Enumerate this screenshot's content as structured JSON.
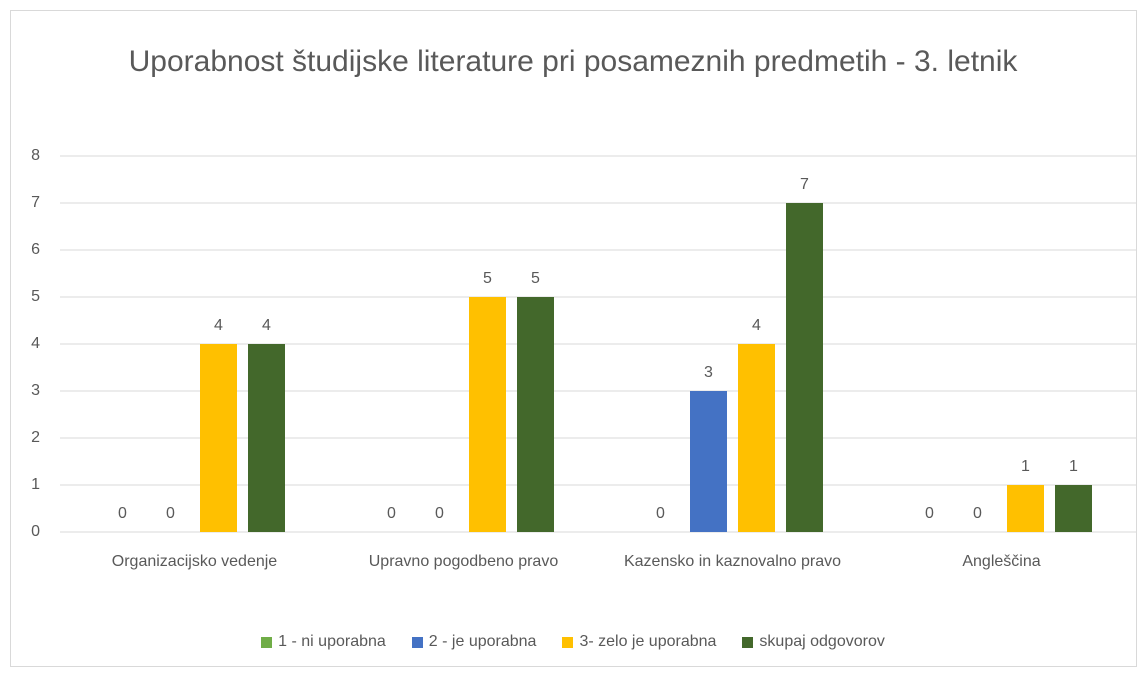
{
  "chart_data": {
    "type": "bar",
    "title": "Uporabnost študijske literature pri posameznih predmetih - 3. letnik",
    "categories": [
      "Organizacijsko vedenje",
      "Upravno pogodbeno pravo",
      "Kazensko in kaznovalno pravo",
      "Angleščina"
    ],
    "series": [
      {
        "name": "1 - ni uporabna",
        "color": "#70ad47",
        "values": [
          0,
          0,
          0,
          0
        ]
      },
      {
        "name": "2 - je uporabna",
        "color": "#4472c4",
        "values": [
          0,
          0,
          3,
          0
        ]
      },
      {
        "name": "3- zelo je uporabna",
        "color": "#ffc000",
        "values": [
          4,
          5,
          4,
          1
        ]
      },
      {
        "name": "skupaj odgovorov",
        "color": "#43682b",
        "values": [
          4,
          5,
          7,
          1
        ]
      }
    ],
    "ylim": [
      0,
      8
    ],
    "yticks": [
      0,
      1,
      2,
      3,
      4,
      5,
      6,
      7,
      8
    ],
    "grid": true,
    "legend": "bottom"
  }
}
